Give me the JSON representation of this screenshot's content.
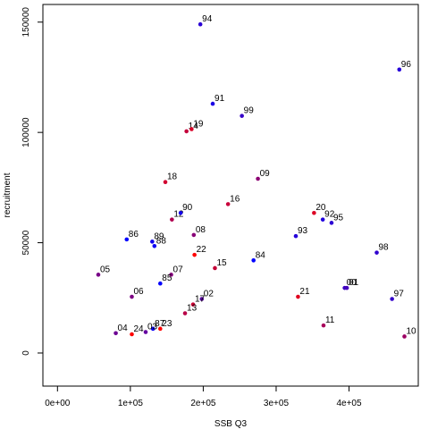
{
  "chart_data": {
    "type": "scatter",
    "title": "",
    "xlabel": "SSB Q3",
    "ylabel": "recruitment",
    "xlim": [
      -20000,
      495000
    ],
    "ylim": [
      -15000,
      158000
    ],
    "grid": false,
    "legend": "none",
    "x_ticks": [
      {
        "value": 0,
        "label": "0e+00"
      },
      {
        "value": 100000,
        "label": "1e+05"
      },
      {
        "value": 200000,
        "label": "2e+05"
      },
      {
        "value": 300000,
        "label": "3e+05"
      },
      {
        "value": 400000,
        "label": "4e+05"
      }
    ],
    "y_ticks": [
      {
        "value": 0,
        "label": "0"
      },
      {
        "value": 50000,
        "label": "50000"
      },
      {
        "value": 100000,
        "label": "100000"
      },
      {
        "value": 150000,
        "label": "150000"
      }
    ],
    "colors": {
      "early": "#0000ff",
      "late": "#ff0000"
    },
    "points": [
      {
        "label": "94",
        "x": 196000,
        "y": 149000,
        "color": "#2a00d5"
      },
      {
        "label": "96",
        "x": 469000,
        "y": 128500,
        "color": "#2600d9"
      },
      {
        "label": "91",
        "x": 213000,
        "y": 113000,
        "color": "#1a00e5"
      },
      {
        "label": "99",
        "x": 253000,
        "y": 107500,
        "color": "#3600c9"
      },
      {
        "label": "14",
        "x": 177000,
        "y": 100500,
        "color": "#c4003b"
      },
      {
        "label": "19",
        "x": 184000,
        "y": 101500,
        "color": "#d80027"
      },
      {
        "label": "09",
        "x": 275000,
        "y": 79000,
        "color": "#8c0073"
      },
      {
        "label": "18",
        "x": 148000,
        "y": 77500,
        "color": "#d20031"
      },
      {
        "label": "16",
        "x": 234000,
        "y": 67500,
        "color": "#c8003b"
      },
      {
        "label": "20",
        "x": 352000,
        "y": 63500,
        "color": "#dc0023"
      },
      {
        "label": "12",
        "x": 157000,
        "y": 60500,
        "color": "#b0004f"
      },
      {
        "label": "90",
        "x": 169000,
        "y": 63500,
        "color": "#1400eb"
      },
      {
        "label": "92",
        "x": 364000,
        "y": 60500,
        "color": "#2000df"
      },
      {
        "label": "95",
        "x": 376000,
        "y": 59000,
        "color": "#2c00d3"
      },
      {
        "label": "86",
        "x": 95000,
        "y": 51500,
        "color": "#0000ff"
      },
      {
        "label": "89",
        "x": 130000,
        "y": 50500,
        "color": "#1000ef"
      },
      {
        "label": "88",
        "x": 133000,
        "y": 48500,
        "color": "#0c00f3"
      },
      {
        "label": "08",
        "x": 187000,
        "y": 53500,
        "color": "#880077"
      },
      {
        "label": "93",
        "x": 327000,
        "y": 53000,
        "color": "#2400db"
      },
      {
        "label": "98",
        "x": 438000,
        "y": 45500,
        "color": "#3000cf"
      },
      {
        "label": "22",
        "x": 188000,
        "y": 44500,
        "color": "#ff0000"
      },
      {
        "label": "84",
        "x": 269000,
        "y": 42000,
        "color": "#0000ff"
      },
      {
        "label": "15",
        "x": 216000,
        "y": 38500,
        "color": "#c40037"
      },
      {
        "label": "05",
        "x": 56000,
        "y": 35500,
        "color": "#780087"
      },
      {
        "label": "07",
        "x": 156000,
        "y": 35500,
        "color": "#84007b"
      },
      {
        "label": "85",
        "x": 141000,
        "y": 31500,
        "color": "#0400fb"
      },
      {
        "label": "00",
        "x": 394000,
        "y": 29500,
        "color": "#3c00c3"
      },
      {
        "label": "01",
        "x": 397000,
        "y": 29500,
        "color": "#4400bb"
      },
      {
        "label": "06",
        "x": 102000,
        "y": 25500,
        "color": "#7c0083"
      },
      {
        "label": "02",
        "x": 198000,
        "y": 24500,
        "color": "#58009f"
      },
      {
        "label": "21",
        "x": 330000,
        "y": 25500,
        "color": "#e0001f"
      },
      {
        "label": "97",
        "x": 459000,
        "y": 24500,
        "color": "#3400cb"
      },
      {
        "label": "17",
        "x": 186000,
        "y": 22000,
        "color": "#cc0033"
      },
      {
        "label": "13",
        "x": 175000,
        "y": 18000,
        "color": "#b80047"
      },
      {
        "label": "11",
        "x": 365000,
        "y": 12500,
        "color": "#a8005b"
      },
      {
        "label": "87",
        "x": 131000,
        "y": 11000,
        "color": "#0800f7"
      },
      {
        "label": "23",
        "x": 141000,
        "y": 11000,
        "color": "#ff0000"
      },
      {
        "label": "03",
        "x": 121000,
        "y": 9500,
        "color": "#6400a0"
      },
      {
        "label": "04",
        "x": 80000,
        "y": 9000,
        "color": "#6c0093"
      },
      {
        "label": "24",
        "x": 102000,
        "y": 8500,
        "color": "#ff0000"
      },
      {
        "label": "10",
        "x": 476000,
        "y": 7500,
        "color": "#9c0063"
      }
    ]
  }
}
